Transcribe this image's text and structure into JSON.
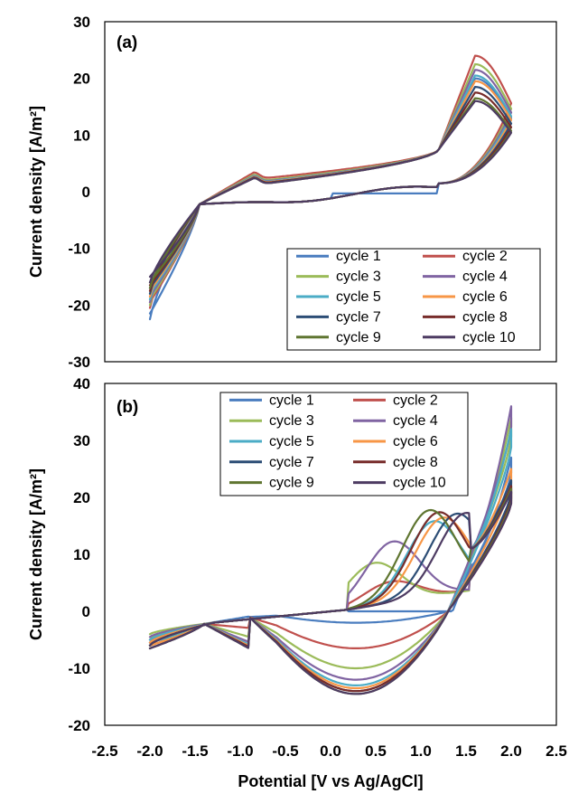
{
  "figure": {
    "xlabel": "Potential [V vs Ag/AgCl]",
    "x_ticks": [
      "-2.5",
      "-2.0",
      "-1.5",
      "-1.0",
      "-0.5",
      "0.0",
      "0.5",
      "1.0",
      "1.5",
      "2.0",
      "2.5"
    ]
  },
  "chart_data": [
    {
      "type": "line",
      "panel_label": "(a)",
      "ylabel": "Current density [A/m²]",
      "xlim": [
        -2.5,
        2.5
      ],
      "ylim": [
        -30,
        30
      ],
      "y_ticks": [
        "30",
        "20",
        "10",
        "0",
        "-10",
        "-20",
        "-30"
      ],
      "legend_position": "lower-right",
      "series": [
        {
          "name": "cycle 1",
          "color": "#4a7dbf"
        },
        {
          "name": "cycle 2",
          "color": "#c0504d"
        },
        {
          "name": "cycle 3",
          "color": "#9bbb59"
        },
        {
          "name": "cycle 4",
          "color": "#8064a2"
        },
        {
          "name": "cycle 5",
          "color": "#4bacc6"
        },
        {
          "name": "cycle 6",
          "color": "#f79646"
        },
        {
          "name": "cycle 7",
          "color": "#2c4d75"
        },
        {
          "name": "cycle 8",
          "color": "#772c2a"
        },
        {
          "name": "cycle 9",
          "color": "#5f7530"
        },
        {
          "name": "cycle 10",
          "color": "#4d3b62"
        }
      ],
      "cycles": [
        {
          "min_current": -22.5,
          "peak_current": 20.0,
          "return_high": 1.5
        },
        {
          "min_current": -20.5,
          "peak_current": 24.0,
          "return_high": 2.2
        },
        {
          "min_current": -20.0,
          "peak_current": 22.5,
          "return_high": 1.8
        },
        {
          "min_current": -19.5,
          "peak_current": 21.5,
          "return_high": 1.6
        },
        {
          "min_current": -19.0,
          "peak_current": 20.5,
          "return_high": 1.5
        },
        {
          "min_current": -18.5,
          "peak_current": 19.5,
          "return_high": 1.4
        },
        {
          "min_current": -18.0,
          "peak_current": 18.5,
          "return_high": 1.3
        },
        {
          "min_current": -17.5,
          "peak_current": 17.5,
          "return_high": 1.3
        },
        {
          "min_current": -17.0,
          "peak_current": 16.5,
          "return_high": 1.2
        },
        {
          "min_current": -16.0,
          "peak_current": 16.0,
          "return_high": 1.2
        }
      ]
    },
    {
      "type": "line",
      "panel_label": "(b)",
      "ylabel": "Current density [A/m²]",
      "xlim": [
        -2.5,
        2.5
      ],
      "ylim": [
        -20,
        40
      ],
      "y_ticks": [
        "40",
        "30",
        "20",
        "10",
        "0",
        "-10",
        "-20"
      ],
      "legend_position": "top-right",
      "series": [
        {
          "name": "cycle 1",
          "color": "#4a7dbf"
        },
        {
          "name": "cycle 2",
          "color": "#c0504d"
        },
        {
          "name": "cycle 3",
          "color": "#9bbb59"
        },
        {
          "name": "cycle 4",
          "color": "#8064a2"
        },
        {
          "name": "cycle 5",
          "color": "#4bacc6"
        },
        {
          "name": "cycle 6",
          "color": "#f79646"
        },
        {
          "name": "cycle 7",
          "color": "#2c4d75"
        },
        {
          "name": "cycle 8",
          "color": "#772c2a"
        },
        {
          "name": "cycle 9",
          "color": "#5f7530"
        },
        {
          "name": "cycle 10",
          "color": "#4d3b62"
        }
      ],
      "cycles": [
        {
          "end_current": 27.0,
          "peak_x": 1.35,
          "peak_y": 0.0,
          "cathodic_min": -2.0,
          "start_current": -5.0
        },
        {
          "end_current": 21.0,
          "peak_x": 0.7,
          "peak_y": 4.5,
          "cathodic_min": -6.5,
          "start_current": -5.5
        },
        {
          "end_current": 34.0,
          "peak_x": 0.5,
          "peak_y": 8.0,
          "cathodic_min": -10.0,
          "start_current": -4.0
        },
        {
          "end_current": 36.0,
          "peak_x": 0.7,
          "peak_y": 11.5,
          "cathodic_min": -12.0,
          "start_current": -4.5
        },
        {
          "end_current": 32.0,
          "peak_x": 1.15,
          "peak_y": 14.5,
          "cathodic_min": -13.0,
          "start_current": -5.0
        },
        {
          "end_current": 25.0,
          "peak_x": 1.25,
          "peak_y": 15.0,
          "cathodic_min": -13.5,
          "start_current": -5.5
        },
        {
          "end_current": 23.0,
          "peak_x": 1.4,
          "peak_y": 15.5,
          "cathodic_min": -14.0,
          "start_current": -6.0
        },
        {
          "end_current": 22.0,
          "peak_x": 1.2,
          "peak_y": 16.0,
          "cathodic_min": -14.0,
          "start_current": -6.0
        },
        {
          "end_current": 21.5,
          "peak_x": 1.1,
          "peak_y": 16.5,
          "cathodic_min": -14.5,
          "start_current": -6.0
        },
        {
          "end_current": 21.0,
          "peak_x": 1.5,
          "peak_y": 15.5,
          "cathodic_min": -14.5,
          "start_current": -6.0
        }
      ]
    }
  ]
}
